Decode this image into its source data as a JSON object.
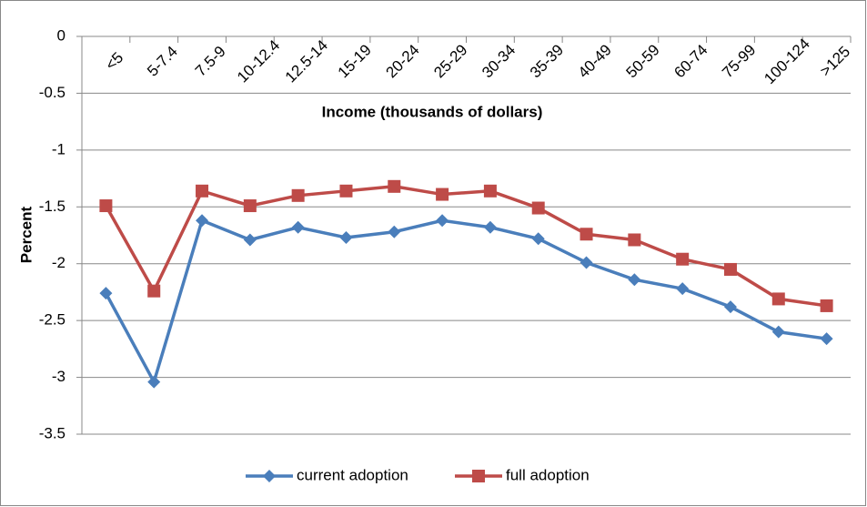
{
  "chart_data": {
    "type": "line",
    "x_label": "Income (thousands of dollars)",
    "y_label": "Percent",
    "categories": [
      "<5",
      "5-7.4",
      "7.5-9",
      "10-12.4",
      "12.5-14",
      "15-19",
      "20-24",
      "25-29",
      "30-34",
      "35-39",
      "40-49",
      "50-59",
      "60-74",
      "75-99",
      "100-124",
      ">125"
    ],
    "series": [
      {
        "name": "current adoption",
        "color": "#4a7ebb",
        "marker": "diamond",
        "values": [
          -2.26,
          -3.04,
          -1.62,
          -1.79,
          -1.68,
          -1.77,
          -1.72,
          -1.62,
          -1.68,
          -1.78,
          -1.99,
          -2.14,
          -2.22,
          -2.38,
          -2.6,
          -2.66
        ]
      },
      {
        "name": "full adoption",
        "color": "#be4b48",
        "marker": "square",
        "values": [
          -1.49,
          -2.24,
          -1.36,
          -1.49,
          -1.4,
          -1.36,
          -1.32,
          -1.39,
          -1.36,
          -1.51,
          -1.74,
          -1.79,
          -1.96,
          -2.05,
          -2.31,
          -2.37
        ]
      }
    ],
    "ylim": [
      -3.5,
      0
    ],
    "yticks": [
      0,
      -0.5,
      -1,
      -1.5,
      -2,
      -2.5,
      -3,
      -3.5
    ],
    "grid": true,
    "legend": "bottom"
  }
}
